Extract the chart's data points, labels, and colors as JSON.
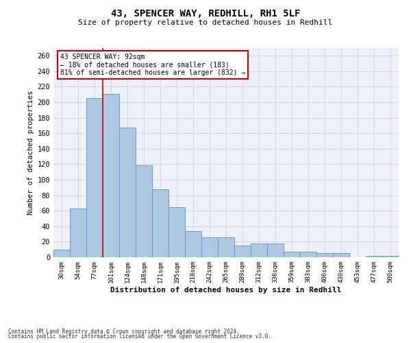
{
  "title_line1": "43, SPENCER WAY, REDHILL, RH1 5LF",
  "title_line2": "Size of property relative to detached houses in Redhill",
  "xlabel": "Distribution of detached houses by size in Redhill",
  "ylabel": "Number of detached properties",
  "footnote1": "Contains HM Land Registry data © Crown copyright and database right 2024.",
  "footnote2": "Contains public sector information licensed under the Open Government Licence v3.0.",
  "categories": [
    "30sqm",
    "54sqm",
    "77sqm",
    "101sqm",
    "124sqm",
    "148sqm",
    "171sqm",
    "195sqm",
    "218sqm",
    "242sqm",
    "265sqm",
    "289sqm",
    "312sqm",
    "336sqm",
    "359sqm",
    "383sqm",
    "406sqm",
    "430sqm",
    "453sqm",
    "477sqm",
    "500sqm"
  ],
  "values": [
    10,
    63,
    205,
    211,
    167,
    119,
    88,
    65,
    34,
    26,
    26,
    15,
    18,
    18,
    7,
    7,
    5,
    5,
    0,
    2,
    2
  ],
  "bar_color": "#adc8e0",
  "bar_edge_color": "#5b9bd5",
  "grid_color": "#c8d4e8",
  "bg_color": "#eef2f8",
  "annotation_text": "43 SPENCER WAY: 92sqm\n← 18% of detached houses are smaller (183)\n81% of semi-detached houses are larger (832) →",
  "annotation_box_color": "#ffffff",
  "annotation_box_edge": "#cc0000",
  "vline_color": "#cc0000",
  "ylim": [
    0,
    270
  ],
  "yticks": [
    0,
    20,
    40,
    60,
    80,
    100,
    120,
    140,
    160,
    180,
    200,
    220,
    240,
    260
  ]
}
